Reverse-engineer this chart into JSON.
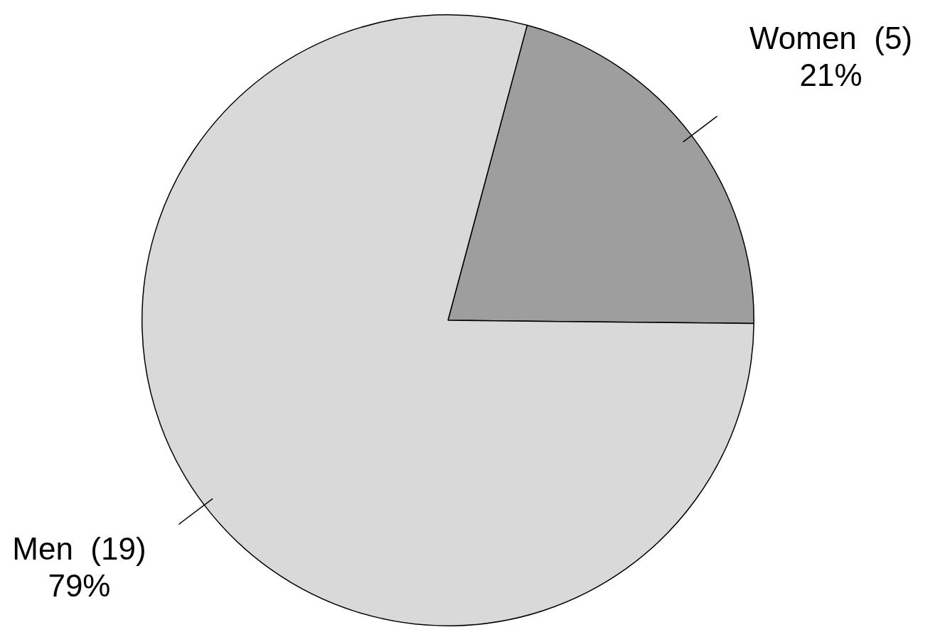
{
  "chart_data": {
    "type": "pie",
    "categories": [
      "Women  (5)",
      "Men  (19)"
    ],
    "values": [
      21,
      79
    ],
    "value_labels": [
      "21%",
      "79%"
    ],
    "colors": [
      "#9e9e9e",
      "#d9d9d9"
    ],
    "legend": false
  }
}
